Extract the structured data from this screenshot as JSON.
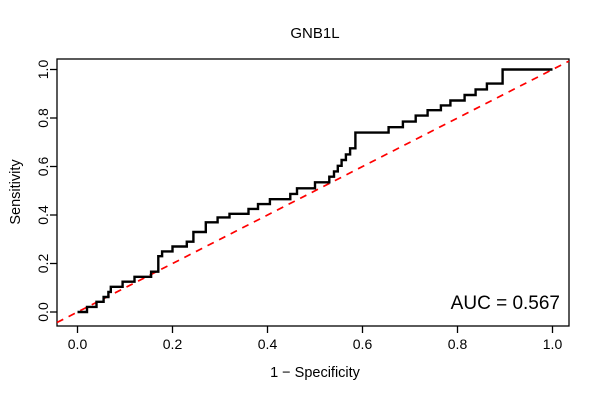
{
  "figure": {
    "background": "#ffffff"
  },
  "chart_data": {
    "type": "line",
    "subtype": "roc-step-curve",
    "title": "GNB1L",
    "xlabel": "1 − Specificity",
    "ylabel": "Sensitivity",
    "annotation": "AUC = 0.567",
    "auc_value": 0.567,
    "xlim": [
      0,
      1
    ],
    "ylim": [
      0,
      1
    ],
    "grid": false,
    "legend_position": "none",
    "x_ticks": {
      "values": [
        0,
        0.2,
        0.4,
        0.6,
        0.8,
        1.0
      ],
      "labels": [
        "0.0",
        "0.2",
        "0.4",
        "0.6",
        "0.8",
        "1.0"
      ]
    },
    "y_ticks": {
      "values": [
        0,
        0.2,
        0.4,
        0.6,
        0.8,
        1.0
      ],
      "labels": [
        "0.0",
        "0.2",
        "0.4",
        "0.6",
        "0.8",
        "1.0"
      ]
    },
    "series": [
      {
        "name": "ROC curve",
        "color": "#000000",
        "line_style": "solid",
        "points": [
          [
            0,
            0
          ],
          [
            0.02,
            0
          ],
          [
            0.02,
            0.021
          ],
          [
            0.04,
            0.021
          ],
          [
            0.04,
            0.042
          ],
          [
            0.055,
            0.042
          ],
          [
            0.055,
            0.062
          ],
          [
            0.065,
            0.062
          ],
          [
            0.065,
            0.083
          ],
          [
            0.07,
            0.083
          ],
          [
            0.07,
            0.104
          ],
          [
            0.095,
            0.104
          ],
          [
            0.095,
            0.125
          ],
          [
            0.12,
            0.125
          ],
          [
            0.12,
            0.145
          ],
          [
            0.155,
            0.145
          ],
          [
            0.155,
            0.166
          ],
          [
            0.17,
            0.166
          ],
          [
            0.17,
            0.23
          ],
          [
            0.178,
            0.23
          ],
          [
            0.178,
            0.25
          ],
          [
            0.2,
            0.25
          ],
          [
            0.2,
            0.27
          ],
          [
            0.23,
            0.27
          ],
          [
            0.23,
            0.29
          ],
          [
            0.244,
            0.29
          ],
          [
            0.244,
            0.33
          ],
          [
            0.27,
            0.33
          ],
          [
            0.27,
            0.37
          ],
          [
            0.295,
            0.37
          ],
          [
            0.295,
            0.39
          ],
          [
            0.32,
            0.39
          ],
          [
            0.32,
            0.405
          ],
          [
            0.36,
            0.405
          ],
          [
            0.36,
            0.425
          ],
          [
            0.38,
            0.425
          ],
          [
            0.38,
            0.445
          ],
          [
            0.405,
            0.445
          ],
          [
            0.405,
            0.465
          ],
          [
            0.448,
            0.465
          ],
          [
            0.448,
            0.487
          ],
          [
            0.462,
            0.487
          ],
          [
            0.462,
            0.51
          ],
          [
            0.5,
            0.51
          ],
          [
            0.5,
            0.535
          ],
          [
            0.53,
            0.535
          ],
          [
            0.53,
            0.558
          ],
          [
            0.54,
            0.558
          ],
          [
            0.54,
            0.58
          ],
          [
            0.548,
            0.58
          ],
          [
            0.548,
            0.603
          ],
          [
            0.556,
            0.603
          ],
          [
            0.556,
            0.627
          ],
          [
            0.565,
            0.627
          ],
          [
            0.565,
            0.65
          ],
          [
            0.574,
            0.65
          ],
          [
            0.574,
            0.675
          ],
          [
            0.585,
            0.675
          ],
          [
            0.585,
            0.74
          ],
          [
            0.655,
            0.74
          ],
          [
            0.655,
            0.762
          ],
          [
            0.685,
            0.762
          ],
          [
            0.685,
            0.785
          ],
          [
            0.712,
            0.785
          ],
          [
            0.712,
            0.81
          ],
          [
            0.737,
            0.81
          ],
          [
            0.737,
            0.832
          ],
          [
            0.765,
            0.832
          ],
          [
            0.765,
            0.852
          ],
          [
            0.785,
            0.852
          ],
          [
            0.785,
            0.872
          ],
          [
            0.815,
            0.872
          ],
          [
            0.815,
            0.895
          ],
          [
            0.838,
            0.895
          ],
          [
            0.838,
            0.918
          ],
          [
            0.862,
            0.918
          ],
          [
            0.862,
            0.942
          ],
          [
            0.895,
            0.942
          ],
          [
            0.895,
            1
          ],
          [
            1,
            1
          ]
        ]
      },
      {
        "name": "Chance diagonal",
        "color": "#ff0000",
        "line_style": "dashed",
        "points": [
          [
            0,
            0
          ],
          [
            1,
            1
          ]
        ]
      }
    ]
  }
}
